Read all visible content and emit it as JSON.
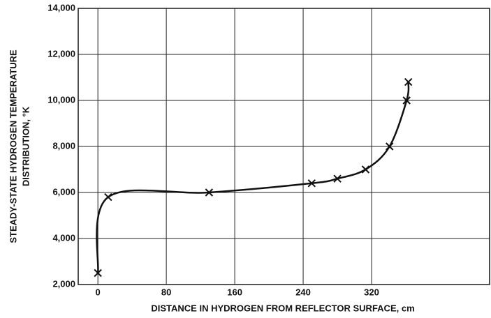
{
  "chart_data": {
    "type": "line",
    "x_label": "DISTANCE IN HYDROGEN FROM REFLECTOR SURFACE, cm",
    "y_label": [
      "STEADY-STATE HYDROGEN TEMPERATURE",
      "DISTRIBUTION, °K"
    ],
    "x": [
      0,
      12,
      130,
      250,
      280,
      313,
      341,
      361,
      363
    ],
    "series": [
      {
        "color": "#111111",
        "marker": "x",
        "values": [
          2500,
          5800,
          6000,
          6400,
          6600,
          7000,
          8000,
          10000,
          10800
        ]
      }
    ],
    "xlim": [
      -23,
      458
    ],
    "xticks": [
      0,
      80,
      160,
      240,
      320
    ],
    "ylim": [
      2000,
      14000
    ],
    "yticks": [
      {
        "value": 2000,
        "label": "2,000"
      },
      {
        "value": 4000,
        "label": "4,000"
      },
      {
        "value": 6000,
        "label": "6,000"
      },
      {
        "value": 8000,
        "label": "8,000"
      },
      {
        "value": 10000,
        "label": "10,000"
      },
      {
        "value": 12000,
        "label": "12,000"
      },
      {
        "value": 14000,
        "label": "14,000"
      }
    ],
    "grid": true
  }
}
